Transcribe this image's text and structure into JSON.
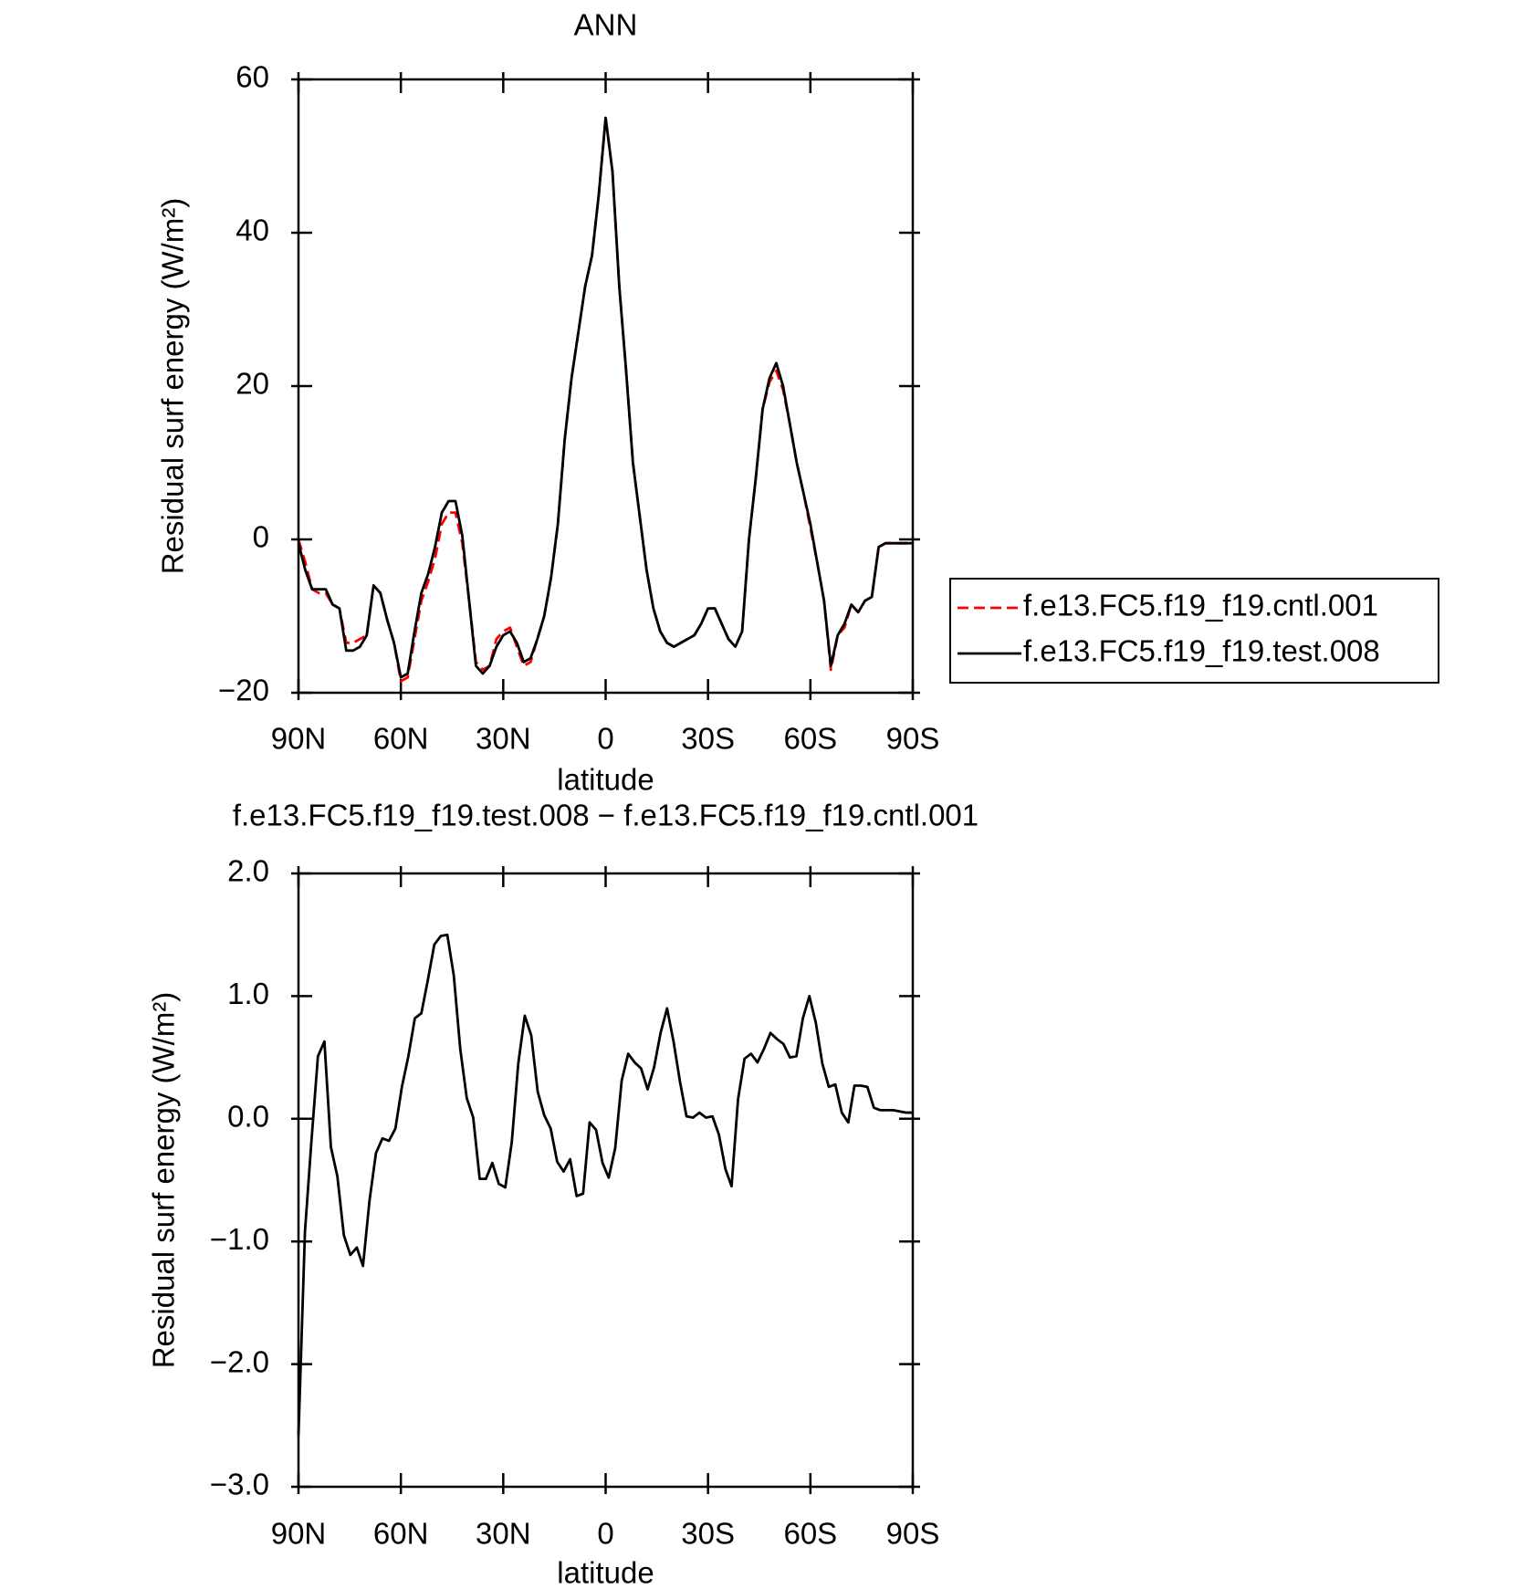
{
  "chart_data": [
    {
      "type": "line",
      "title": "ANN",
      "xlabel": "latitude",
      "ylabel": "Residual surf energy (W/m²)",
      "x": [
        90,
        88,
        86,
        84,
        82,
        80,
        78,
        76,
        74,
        72,
        70,
        68,
        66,
        64,
        62,
        60,
        58,
        56,
        54,
        52,
        50,
        48,
        46,
        44,
        42,
        40,
        38,
        36,
        34,
        32,
        30,
        28,
        26,
        24,
        22,
        20,
        18,
        16,
        14,
        12,
        10,
        8,
        6,
        4,
        2,
        0,
        -2,
        -4,
        -6,
        -8,
        -10,
        -12,
        -14,
        -16,
        -18,
        -20,
        -22,
        -24,
        -26,
        -28,
        -30,
        -32,
        -34,
        -36,
        -38,
        -40,
        -42,
        -44,
        -46,
        -48,
        -50,
        -52,
        -54,
        -56,
        -58,
        -60,
        -62,
        -64,
        -66,
        -68,
        -70,
        -72,
        -74,
        -76,
        -78,
        -80,
        -82,
        -84,
        -86,
        -88,
        -90
      ],
      "xlim": [
        90,
        -90
      ],
      "xticks": [
        {
          "value": 90,
          "label": "90N"
        },
        {
          "value": 60,
          "label": "60N"
        },
        {
          "value": 30,
          "label": "30N"
        },
        0,
        {
          "value": -30,
          "label": "30S"
        },
        {
          "value": -60,
          "label": "60S"
        },
        {
          "value": -90,
          "label": "90S"
        }
      ],
      "ylim": [
        -20,
        60
      ],
      "yticks": [
        {
          "value": -20,
          "label": "−20"
        },
        0,
        20,
        40,
        60
      ],
      "legend": "outside-right",
      "series": [
        {
          "name": "f.e13.FC5.f19_f19.cntl.001",
          "color": "#ff0000",
          "line_style": "dashed",
          "values": [
            0,
            -3,
            -6.5,
            -7,
            -7,
            -8.5,
            -9,
            -13.5,
            -13.5,
            -13,
            -12.5,
            -6,
            -7,
            -10.5,
            -13.5,
            -18.5,
            -18,
            -13,
            -8,
            -5.5,
            -2.5,
            2,
            3.5,
            3.5,
            -0.5,
            -8,
            -16,
            -17,
            -16.5,
            -13,
            -12,
            -11.5,
            -14,
            -16.5,
            -16,
            -13,
            -10,
            -5,
            2,
            13,
            21,
            27,
            33,
            37,
            45,
            55,
            48,
            33,
            22,
            10,
            3,
            -4,
            -9,
            -12,
            -13.5,
            -14,
            -13.5,
            -13,
            -12.5,
            -11,
            -9,
            -9,
            -11,
            -13,
            -14,
            -12,
            0,
            8,
            17,
            20.5,
            22,
            19.5,
            15,
            10,
            6,
            1.5,
            -3,
            -8,
            -17,
            -12.5,
            -11.5,
            -8.5,
            -9.5,
            -8,
            -7.5,
            -1,
            -0.5,
            -0.5,
            -0.5,
            -0.5,
            -0.5
          ]
        },
        {
          "name": "f.e13.FC5.f19_f19.test.008",
          "color": "#000000",
          "line_style": "solid",
          "values": [
            -0.5,
            -4,
            -6.5,
            -6.5,
            -6.5,
            -8.5,
            -9,
            -14.5,
            -14.5,
            -14,
            -12.5,
            -6,
            -7,
            -10.5,
            -13.5,
            -18,
            -17.5,
            -12,
            -7,
            -4.5,
            -1,
            3.5,
            5,
            5,
            0.5,
            -8,
            -16.5,
            -17.5,
            -16.5,
            -14,
            -12.5,
            -12,
            -13.5,
            -16,
            -15.5,
            -13,
            -10,
            -5,
            2,
            13,
            21,
            27,
            33,
            37,
            45,
            55,
            48,
            33,
            22,
            10,
            3,
            -4,
            -9,
            -12,
            -13.5,
            -14,
            -13.5,
            -13,
            -12.5,
            -11,
            -9,
            -9,
            -11,
            -13,
            -14,
            -12,
            0,
            8,
            17,
            21,
            23,
            20,
            15,
            10,
            6,
            2,
            -3,
            -8,
            -16.5,
            -12.5,
            -11,
            -8.5,
            -9.5,
            -8,
            -7.5,
            -1,
            -0.5,
            -0.5,
            -0.5,
            -0.5,
            -0.5
          ]
        }
      ]
    },
    {
      "type": "line",
      "title": "f.e13.FC5.f19_f19.test.008 − f.e13.FC5.f19_f19.cntl.001",
      "xlabel": "latitude",
      "ylabel": "Residual surf energy (W/m²)",
      "x": [
        90,
        88.1,
        86.2,
        84.3,
        82.4,
        80.5,
        78.6,
        76.7,
        74.8,
        72.9,
        71.1,
        69.2,
        67.3,
        65.4,
        63.5,
        61.6,
        59.7,
        57.8,
        55.9,
        54,
        52.1,
        50.2,
        48.3,
        46.4,
        44.5,
        42.6,
        40.7,
        38.8,
        36.9,
        35.1,
        33.2,
        31.3,
        29.4,
        27.5,
        25.6,
        23.7,
        21.8,
        19.9,
        18,
        16.1,
        14.2,
        12.3,
        10.4,
        8.5,
        6.6,
        4.7,
        2.8,
        0.9,
        -0.9,
        -2.8,
        -4.7,
        -6.6,
        -8.5,
        -10.4,
        -12.3,
        -14.2,
        -16.1,
        -18,
        -19.9,
        -21.8,
        -23.7,
        -25.6,
        -27.5,
        -29.4,
        -31.3,
        -33.2,
        -35.1,
        -36.9,
        -38.8,
        -40.7,
        -42.6,
        -44.5,
        -46.4,
        -48.3,
        -50.2,
        -52.1,
        -54,
        -55.9,
        -57.8,
        -59.7,
        -61.6,
        -63.5,
        -65.4,
        -67.3,
        -69.2,
        -71.1,
        -72.9,
        -74.8,
        -76.7,
        -78.6,
        -80.5,
        -82.4,
        -84.3,
        -86.2,
        -88.1,
        -90
      ],
      "xlim": [
        90,
        -90
      ],
      "xticks": [
        {
          "value": 90,
          "label": "90N"
        },
        {
          "value": 60,
          "label": "60N"
        },
        {
          "value": 30,
          "label": "30N"
        },
        0,
        {
          "value": -30,
          "label": "30S"
        },
        {
          "value": -60,
          "label": "60S"
        },
        {
          "value": -90,
          "label": "90S"
        }
      ],
      "ylim": [
        -3,
        2
      ],
      "yticks": [
        {
          "value": -3,
          "label": "−3.0"
        },
        {
          "value": -2,
          "label": "−2.0"
        },
        {
          "value": -1,
          "label": "−1.0"
        },
        {
          "value": 0,
          "label": "0.0"
        },
        {
          "value": 1,
          "label": "1.0"
        },
        {
          "value": 2,
          "label": "2.0"
        }
      ],
      "color": "#000000",
      "values": [
        -2.58,
        -0.92,
        -0.18,
        0.51,
        0.63,
        -0.23,
        -0.47,
        -0.95,
        -1.11,
        -1.05,
        -1.2,
        -0.67,
        -0.28,
        -0.16,
        -0.18,
        -0.08,
        0.26,
        0.51,
        0.82,
        0.86,
        1.13,
        1.42,
        1.49,
        1.5,
        1.17,
        0.57,
        0.17,
        0.01,
        -0.49,
        -0.49,
        -0.36,
        -0.53,
        -0.56,
        -0.19,
        0.45,
        0.84,
        0.68,
        0.22,
        0.03,
        -0.08,
        -0.35,
        -0.43,
        -0.33,
        -0.63,
        -0.61,
        -0.03,
        -0.09,
        -0.36,
        -0.48,
        -0.24,
        0.31,
        0.53,
        0.46,
        0.41,
        0.24,
        0.42,
        0.7,
        0.9,
        0.63,
        0.3,
        0.02,
        0.01,
        0.05,
        0.01,
        0.02,
        -0.13,
        -0.41,
        -0.55,
        0.16,
        0.49,
        0.53,
        0.46,
        0.57,
        0.7,
        0.65,
        0.61,
        0.5,
        0.51,
        0.82,
        1,
        0.78,
        0.45,
        0.26,
        0.28,
        0.05,
        -0.03,
        0.27,
        0.27,
        0.26,
        0.09,
        0.07,
        0.07,
        0.07,
        0.06,
        0.05,
        0.05
      ]
    }
  ]
}
